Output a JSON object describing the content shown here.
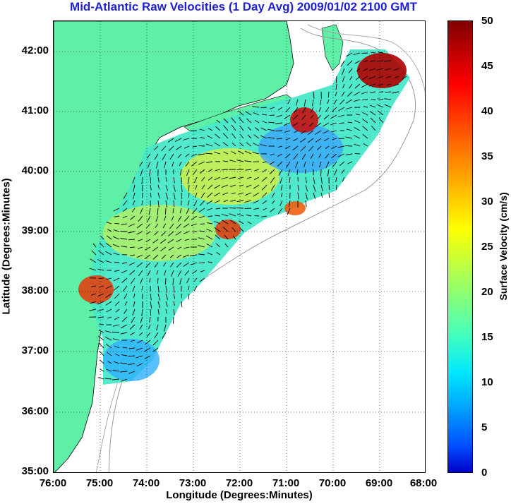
{
  "title": "Mid-Atlantic Raw Velocities (1 Day Avg) 2009/01/02 2100 GMT",
  "x_axis": {
    "label": "Longitude (Degrees:Minutes)",
    "ticks": [
      "76:00",
      "75:00",
      "74:00",
      "73:00",
      "72:00",
      "71:00",
      "70:00",
      "69:00",
      "68:00"
    ]
  },
  "y_axis": {
    "label": "Latitude (Degrees:Minutes)",
    "ticks": [
      "42:00",
      "41:00",
      "40:00",
      "39:00",
      "38:00",
      "37:00",
      "36:00",
      "35:00"
    ]
  },
  "colorbar": {
    "label": "Surface Velocity (cm/s)",
    "ticks": [
      "50",
      "45",
      "40",
      "35",
      "30",
      "25",
      "20",
      "15",
      "10",
      "5",
      "0"
    ],
    "range": [
      0,
      50
    ]
  },
  "colors": {
    "land": "#5ff0a8",
    "title": "#1f1fd6"
  }
}
